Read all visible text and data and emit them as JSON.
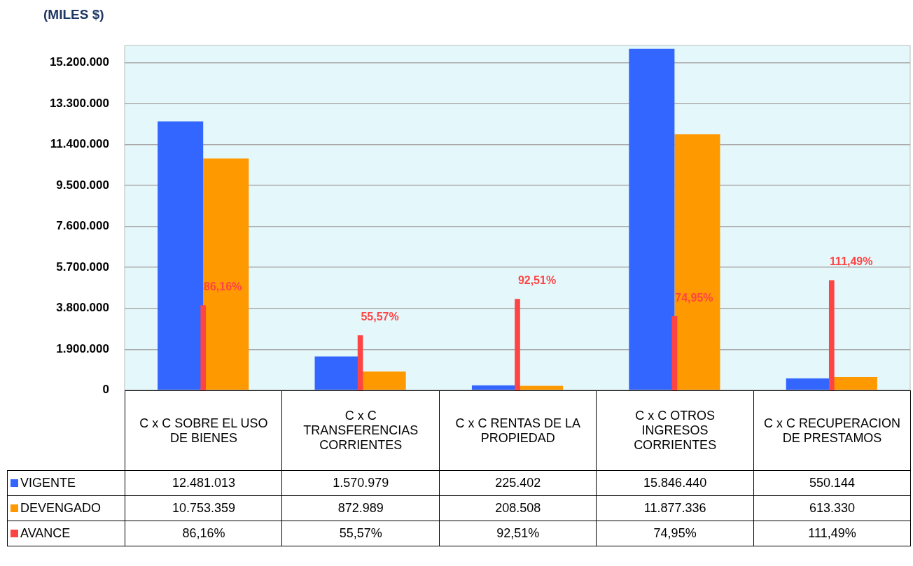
{
  "chart_data": {
    "type": "bar",
    "ylabel": "(MILES $)",
    "categories": [
      "C x C SOBRE EL USO DE BIENES",
      "C x C TRANSFERENCIAS CORRIENTES",
      "C x C RENTAS DE LA PROPIEDAD",
      "C x C OTROS INGRESOS CORRIENTES",
      "C x C RECUPERACION DE PRESTAMOS"
    ],
    "series": [
      {
        "name": "VIGENTE",
        "color": "#3366ff",
        "values": [
          12481013,
          1570979,
          225402,
          15846440,
          550144
        ],
        "value_labels": [
          "12.481.013",
          "1.570.979",
          "225.402",
          "15.846.440",
          "550.144"
        ]
      },
      {
        "name": "DEVENGADO",
        "color": "#ff9900",
        "values": [
          10753359,
          872989,
          208508,
          11877336,
          613330
        ],
        "value_labels": [
          "10.753.359",
          "872.989",
          "208.508",
          "11.877.336",
          "613.330"
        ]
      },
      {
        "name": "AVANCE",
        "color": "#ff4444",
        "axis": "y2",
        "values": [
          86.16,
          55.57,
          92.51,
          74.95,
          111.49
        ],
        "value_labels": [
          "86,16%",
          "55,57%",
          "92,51%",
          "74,95%",
          "111,49%"
        ]
      }
    ],
    "ylim": [
      0,
      16000000
    ],
    "yticks": [
      {
        "value": 0,
        "label": "0"
      },
      {
        "value": 1900000,
        "label": "1.900.000"
      },
      {
        "value": 3800000,
        "label": "3.800.000"
      },
      {
        "value": 5700000,
        "label": "5.700.000"
      },
      {
        "value": 7600000,
        "label": "7.600.000"
      },
      {
        "value": 9500000,
        "label": "9.500.000"
      },
      {
        "value": 11400000,
        "label": "11.400.000"
      },
      {
        "value": 13300000,
        "label": "13.300.000"
      },
      {
        "value": 15200000,
        "label": "15.200.000"
      }
    ],
    "y2lim": [
      0,
      350
    ],
    "grid": "y",
    "legend": "bottom"
  }
}
